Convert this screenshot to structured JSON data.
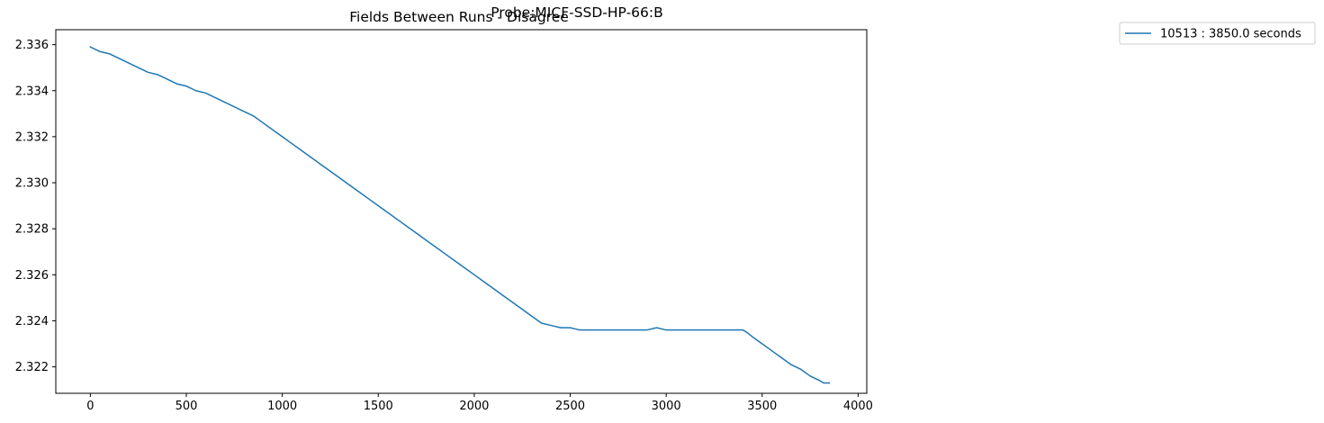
{
  "chart_data": {
    "type": "line",
    "suptitle": "Probe:MICF-SSD-HP-66:B",
    "title": "Fields Between Runs - Disagree",
    "xlabel": "",
    "ylabel": "",
    "xlim": [
      -180,
      4045
    ],
    "ylim": [
      2.32085,
      2.33665
    ],
    "xticks": [
      0,
      500,
      1000,
      1500,
      2000,
      2500,
      3000,
      3500,
      4000
    ],
    "yticks": [
      2.322,
      2.324,
      2.326,
      2.328,
      2.33,
      2.332,
      2.334,
      2.336
    ],
    "ytick_labels": [
      "2.322",
      "2.324",
      "2.326",
      "2.328",
      "2.330",
      "2.332",
      "2.334",
      "2.336"
    ],
    "grid": false,
    "legend_position": "outside-top-right",
    "series": [
      {
        "name": "10513 : 3850.0 seconds",
        "color": "#1f77b4",
        "x": [
          0,
          50,
          100,
          150,
          200,
          250,
          300,
          350,
          400,
          450,
          500,
          550,
          600,
          650,
          700,
          750,
          800,
          850,
          900,
          950,
          1000,
          1050,
          1100,
          1150,
          1200,
          1250,
          1300,
          1350,
          1400,
          1450,
          1500,
          1550,
          1600,
          1650,
          1700,
          1750,
          1800,
          1850,
          1900,
          1950,
          2000,
          2050,
          2100,
          2150,
          2200,
          2250,
          2300,
          2350,
          2400,
          2450,
          2475,
          2500,
          2550,
          2600,
          2650,
          2700,
          2750,
          2800,
          2850,
          2900,
          2950,
          3000,
          3050,
          3100,
          3150,
          3200,
          3250,
          3300,
          3350,
          3400,
          3420,
          3450,
          3500,
          3550,
          3600,
          3650,
          3700,
          3750,
          3800,
          3820,
          3850
        ],
        "y": [
          2.3359,
          2.3357,
          2.3356,
          2.3354,
          2.3352,
          2.335,
          2.3348,
          2.3347,
          2.3345,
          2.3343,
          2.3342,
          2.334,
          2.3339,
          2.3337,
          2.3335,
          2.3333,
          2.3331,
          2.3329,
          2.3326,
          2.3323,
          2.332,
          2.3317,
          2.3314,
          2.3311,
          2.3308,
          2.3305,
          2.3302,
          2.3299,
          2.3296,
          2.3293,
          2.329,
          2.3287,
          2.3284,
          2.3281,
          2.3278,
          2.3275,
          2.3272,
          2.3269,
          2.3266,
          2.3263,
          2.326,
          2.3257,
          2.3254,
          2.3251,
          2.3248,
          2.3245,
          2.3242,
          2.3239,
          2.3238,
          2.3237,
          2.3237,
          2.3237,
          2.3236,
          2.3236,
          2.3236,
          2.3236,
          2.3236,
          2.3236,
          2.3236,
          2.3236,
          2.3237,
          2.3236,
          2.3236,
          2.3236,
          2.3236,
          2.3236,
          2.3236,
          2.3236,
          2.3236,
          2.3236,
          2.3235,
          2.3233,
          2.323,
          2.3227,
          2.3224,
          2.3221,
          2.3219,
          2.3216,
          2.3214,
          2.3213,
          2.3213
        ]
      }
    ]
  }
}
